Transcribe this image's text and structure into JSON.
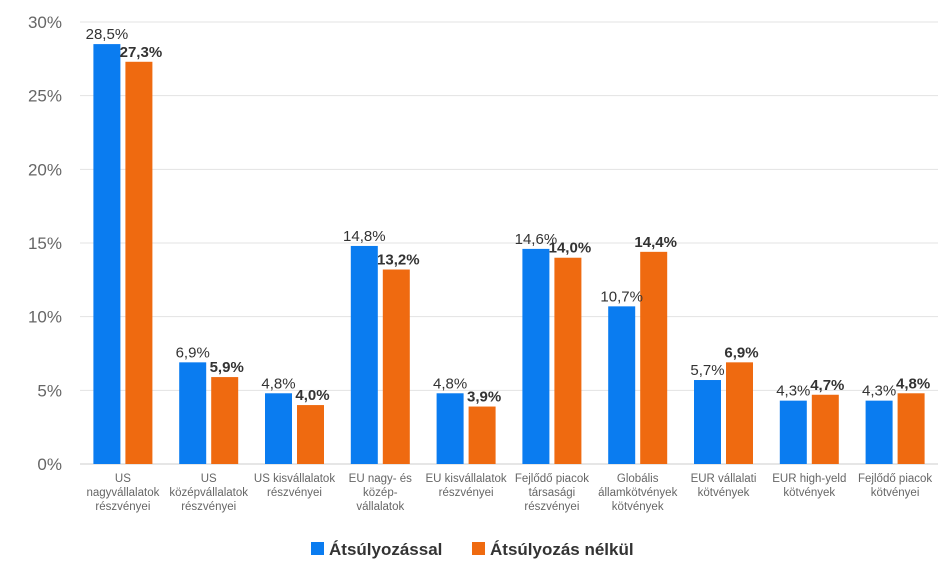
{
  "chart_data": {
    "type": "bar",
    "categories": [
      [
        "US",
        "nagyvállalatok",
        "részvényei"
      ],
      [
        "US",
        "középvállalatok",
        "részvényei"
      ],
      [
        "US kisvállalatok",
        "részvényei"
      ],
      [
        "EU nagy- és",
        "közép-",
        "vállalatok"
      ],
      [
        "EU kisvállalatok",
        "részvényei"
      ],
      [
        "Fejlődő piacok",
        "társasági",
        "részvényei"
      ],
      [
        "Globális",
        "államkötvények",
        "kötvények"
      ],
      [
        "EUR vállalati",
        "kötvények"
      ],
      [
        "EUR high-yeld",
        "kötvények"
      ],
      [
        "Fejlődő piacok",
        "kötvényei"
      ]
    ],
    "series": [
      {
        "name": "Átsúlyozással",
        "values": [
          28.5,
          6.9,
          4.8,
          14.8,
          4.8,
          14.6,
          10.7,
          5.7,
          4.3,
          4.3
        ],
        "labels": [
          "28,5%",
          "6,9%",
          "4,8%",
          "14,8%",
          "4,8%",
          "14,6%",
          "10,7%",
          "5,7%",
          "4,3%",
          "4,3%"
        ],
        "color": "#0a7cf0"
      },
      {
        "name": "Átsúlyozás nélkül",
        "values": [
          27.3,
          5.9,
          4.0,
          13.2,
          3.9,
          14.0,
          14.4,
          6.9,
          4.7,
          4.8
        ],
        "labels": [
          "27,3%",
          "5,9%",
          "4,0%",
          "13,2%",
          "3,9%",
          "14,0%",
          "14,4%",
          "6,9%",
          "4,7%",
          "4,8%"
        ],
        "color": "#ef6a10"
      }
    ],
    "y_ticks": [
      0,
      5,
      10,
      15,
      20,
      25,
      30
    ],
    "y_tick_labels": [
      "0%",
      "5%",
      "10%",
      "15%",
      "20%",
      "25%",
      "30%"
    ],
    "ylim": [
      0,
      30
    ],
    "grid": true,
    "legend_position": "bottom-center"
  }
}
